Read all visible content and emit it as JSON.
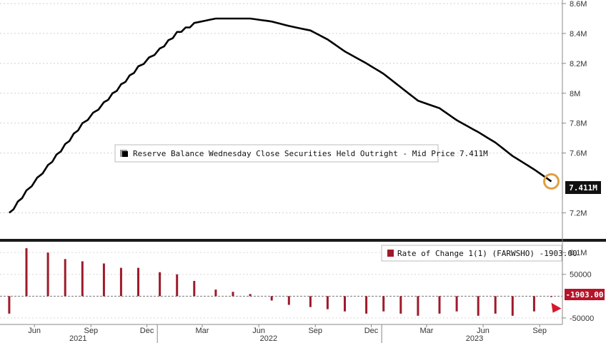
{
  "chart_data": [
    {
      "type": "line",
      "series": [
        {
          "name": "Reserve Balance Wednesday Close Securities Held Outright - Mid Price",
          "last_value_label": "7.411M",
          "x": [
            "2021-05-05",
            "2021-06-02",
            "2021-07-07",
            "2021-08-04",
            "2021-09-01",
            "2021-10-06",
            "2021-11-03",
            "2021-12-01",
            "2022-01-05",
            "2022-02-02",
            "2022-03-02",
            "2022-04-06",
            "2022-05-04",
            "2022-06-01",
            "2022-07-06",
            "2022-08-03",
            "2022-09-07",
            "2022-10-05",
            "2022-11-02",
            "2022-12-07",
            "2023-01-04",
            "2023-02-01",
            "2023-03-01",
            "2023-04-05",
            "2023-05-03",
            "2023-06-07",
            "2023-07-05",
            "2023-08-02",
            "2023-09-06",
            "2023-10-04"
          ],
          "values": [
            7.2,
            7.35,
            7.52,
            7.66,
            7.8,
            7.94,
            8.06,
            8.18,
            8.3,
            8.41,
            8.47,
            8.5,
            8.5,
            8.5,
            8.48,
            8.45,
            8.42,
            8.36,
            8.28,
            8.2,
            8.13,
            8.04,
            7.95,
            7.9,
            7.82,
            7.74,
            7.67,
            7.58,
            7.49,
            7.41
          ]
        }
      ],
      "y_tick_labels": [
        "8.6M",
        "8.4M",
        "8.2M",
        "8M",
        "7.8M",
        "7.6M",
        "7.2M"
      ],
      "ylim": [
        7.14,
        8.6
      ],
      "highlight_marker": "last point circled in orange",
      "legend_placement": "center",
      "grid": "dotted horizontal"
    },
    {
      "type": "bar",
      "series": [
        {
          "name": "Rate of Change 1(1) (FARWSHO)",
          "last_value_label": "-1903.00",
          "x": [
            "2021-05-05",
            "2021-06-02",
            "2021-07-07",
            "2021-08-04",
            "2021-09-01",
            "2021-10-06",
            "2021-11-03",
            "2021-12-01",
            "2022-01-05",
            "2022-02-02",
            "2022-03-02",
            "2022-04-06",
            "2022-05-04",
            "2022-06-01",
            "2022-07-06",
            "2022-08-03",
            "2022-09-07",
            "2022-10-05",
            "2022-11-02",
            "2022-12-07",
            "2023-01-04",
            "2023-02-01",
            "2023-03-01",
            "2023-04-05",
            "2023-05-03",
            "2023-06-07",
            "2023-07-05",
            "2023-08-02",
            "2023-09-06",
            "2023-10-04"
          ],
          "values": [
            -40000,
            110000,
            100000,
            85000,
            80000,
            75000,
            65000,
            65000,
            55000,
            50000,
            35000,
            15000,
            10000,
            5000,
            -10000,
            -20000,
            -25000,
            -30000,
            -35000,
            -40000,
            -35000,
            -40000,
            -45000,
            -40000,
            -35000,
            -45000,
            -40000,
            -45000,
            -35000,
            -1903
          ]
        }
      ],
      "y_tick_labels": [
        "0.1M",
        "50000",
        "-50000"
      ],
      "ylim": [
        -60000,
        115000
      ],
      "legend_placement": "top-right",
      "grid": "dotted horizontal"
    }
  ],
  "x_axis": {
    "month_labels": [
      "Jun",
      "Sep",
      "Dec",
      "Mar",
      "Jun",
      "Sep",
      "Dec",
      "Mar",
      "Jun",
      "Sep"
    ],
    "year_labels": [
      "2021",
      "2022",
      "2023"
    ]
  },
  "legend_upper": {
    "label": "Reserve Balance Wednesday Close Securities Held Outright - Mid Price 7.411M"
  },
  "legend_lower": {
    "label": "Rate of Change 1(1) (FARWSHO) -1903.00"
  },
  "colors": {
    "line": "#000000",
    "bars": "#9e1a2a",
    "marker": "#e0a040",
    "badge_lower": "#b5142a",
    "arrow": "#d8182a"
  }
}
